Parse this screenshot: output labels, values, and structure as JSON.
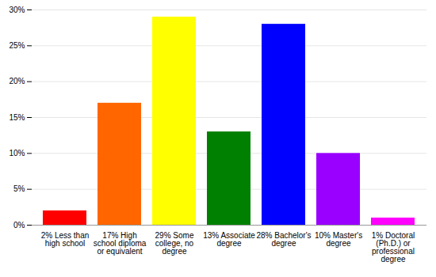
{
  "chart_data": {
    "type": "bar",
    "categories": [
      "2% Less than high school",
      "17% High school diploma or equivalent",
      "29% Some college, no degree",
      "13% Associate degree",
      "28% Bachelor's degree",
      "10% Master's degree",
      "1% Doctoral (Ph.D.) or professional degree"
    ],
    "values": [
      2,
      17,
      29,
      13,
      28,
      10,
      1
    ],
    "colors": [
      "#ff0000",
      "#ff6600",
      "#ffff00",
      "#008000",
      "#0000ff",
      "#9900ff",
      "#ff00ff"
    ],
    "ylim": [
      0,
      30
    ],
    "yticks": [
      {
        "value": 0,
        "label": "0%"
      },
      {
        "value": 5,
        "label": "5%"
      },
      {
        "value": 10,
        "label": "10%"
      },
      {
        "value": 15,
        "label": "15%"
      },
      {
        "value": 20,
        "label": "20%"
      },
      {
        "value": 25,
        "label": "25%"
      },
      {
        "value": 30,
        "label": "30%"
      }
    ],
    "grid": true
  }
}
